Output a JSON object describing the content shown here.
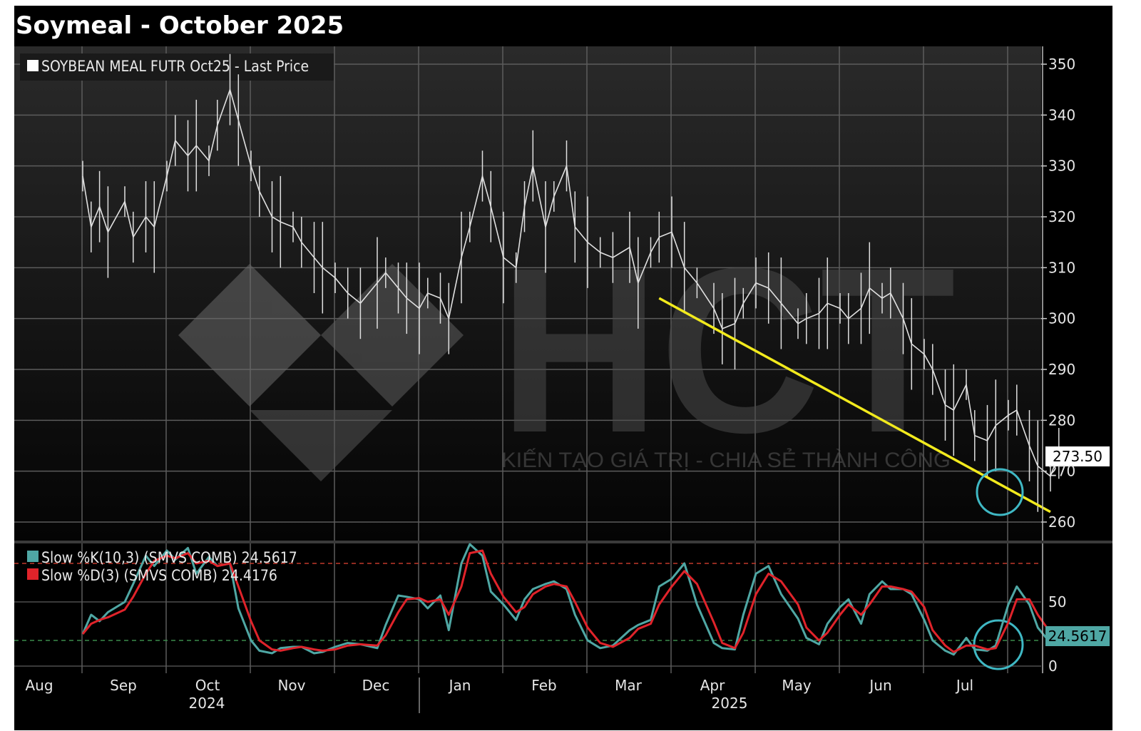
{
  "title": "Soymeal - October 2025",
  "watermark": {
    "logo_text": "HCT",
    "slogan": "KIẾN TẠO GIÁ TRỊ - CHIA SẺ THÀNH CÔNG"
  },
  "colors": {
    "background": "#000000",
    "price": "#e0e0e0",
    "trendline": "#f2ea1d",
    "k_line": "#4fa7a4",
    "d_line": "#e0232a",
    "circle": "#3fb8c4",
    "upper_band": "#c0392b",
    "lower_band": "#3a8a4a",
    "grid": "#5c5c5c"
  },
  "chart_data": [
    {
      "type": "line",
      "title": "Soymeal - October 2025",
      "legend": [
        "SOYBEAN MEAL FUTR Oct25 - Last Price"
      ],
      "legend_placement": "top-left",
      "grid": true,
      "months": [
        "Aug",
        "Sep",
        "Oct",
        "Nov",
        "Dec",
        "Jan",
        "Feb",
        "Mar",
        "Apr",
        "May",
        "Jun",
        "Jul"
      ],
      "years": [
        "2024",
        "2025"
      ],
      "y_ticks": [
        260,
        270,
        280,
        290,
        300,
        310,
        320,
        330,
        340,
        350
      ],
      "ylim": [
        258,
        352
      ],
      "last_price_label": "273.50",
      "series": [
        {
          "name": "SOYBEAN MEAL FUTR Oct25 - Last Price",
          "x": [
            0,
            0.1,
            0.2,
            0.3,
            0.5,
            0.6,
            0.75,
            0.85,
            1,
            1.1,
            1.25,
            1.35,
            1.5,
            1.6,
            1.75,
            1.85,
            2,
            2.1,
            2.25,
            2.35,
            2.5,
            2.6,
            2.75,
            2.85,
            3,
            3.15,
            3.3,
            3.5,
            3.6,
            3.75,
            3.85,
            4,
            4.1,
            4.25,
            4.35,
            4.5,
            4.6,
            4.75,
            4.85,
            5,
            5.15,
            5.25,
            5.35,
            5.5,
            5.6,
            5.75,
            5.85,
            6,
            6.15,
            6.3,
            6.5,
            6.6,
            6.75,
            6.85,
            7,
            7.15,
            7.3,
            7.5,
            7.6,
            7.75,
            7.85,
            8,
            8.15,
            8.3,
            8.5,
            8.6,
            8.75,
            8.85,
            9,
            9.1,
            9.25,
            9.35,
            9.5,
            9.6,
            9.75,
            9.85,
            10,
            10.1,
            10.25,
            10.35,
            10.5,
            10.6,
            10.75,
            10.85,
            11,
            11.1,
            11.25,
            11.35,
            11.5,
            11.6
          ],
          "values": [
            328,
            318,
            322,
            317,
            323,
            316,
            320,
            318,
            328,
            335,
            332,
            334,
            331,
            338,
            345,
            339,
            330,
            325,
            320,
            319,
            318,
            315,
            312,
            310,
            308,
            305,
            303,
            307,
            309,
            306,
            304,
            302,
            305,
            304,
            300,
            312,
            318,
            328,
            322,
            312,
            310,
            322,
            330,
            318,
            324,
            330,
            318,
            315,
            313,
            312,
            314,
            307,
            313,
            316,
            317,
            310,
            307,
            302,
            298,
            299,
            303,
            307,
            306,
            303,
            299,
            300,
            301,
            303,
            302,
            300,
            302,
            306,
            304,
            305,
            300,
            295,
            293,
            290,
            283,
            282,
            287,
            277,
            276,
            279,
            281,
            282,
            275,
            271,
            269,
            273.5
          ]
        },
        {
          "name": "Trend",
          "x": [
            6.85,
            11.5
          ],
          "values": [
            304,
            262
          ]
        }
      ]
    },
    {
      "type": "line",
      "grid": true,
      "y_ticks": [
        0,
        50
      ],
      "ylim": [
        -6,
        100
      ],
      "upper_band": 80,
      "lower_band": 20,
      "last_value_label": "24.5617",
      "series": [
        {
          "name": "Slow %K(10,3) (SMVS COMB)",
          "label": "Slow %K(10,3) (SMVS COMB) 24.5617",
          "x": [
            0,
            0.1,
            0.2,
            0.3,
            0.5,
            0.6,
            0.75,
            0.85,
            1,
            1.1,
            1.25,
            1.35,
            1.5,
            1.6,
            1.75,
            1.85,
            2,
            2.1,
            2.25,
            2.35,
            2.5,
            2.6,
            2.75,
            2.85,
            3,
            3.15,
            3.3,
            3.5,
            3.6,
            3.75,
            3.85,
            4,
            4.1,
            4.25,
            4.35,
            4.5,
            4.6,
            4.75,
            4.85,
            5,
            5.15,
            5.25,
            5.35,
            5.5,
            5.6,
            5.75,
            5.85,
            6,
            6.15,
            6.3,
            6.5,
            6.6,
            6.75,
            6.85,
            7,
            7.15,
            7.3,
            7.5,
            7.6,
            7.75,
            7.85,
            8,
            8.15,
            8.3,
            8.5,
            8.6,
            8.75,
            8.85,
            9,
            9.1,
            9.25,
            9.35,
            9.5,
            9.6,
            9.75,
            9.85,
            10,
            10.1,
            10.25,
            10.35,
            10.5,
            10.6,
            10.75,
            10.85,
            11,
            11.1,
            11.25,
            11.35,
            11.5,
            11.6
          ],
          "values": [
            25,
            40,
            35,
            42,
            50,
            64,
            86,
            78,
            90,
            83,
            92,
            72,
            85,
            78,
            80,
            45,
            20,
            12,
            10,
            14,
            15,
            15,
            10,
            11,
            15,
            18,
            17,
            14,
            32,
            55,
            54,
            52,
            45,
            55,
            28,
            80,
            95,
            86,
            58,
            48,
            36,
            52,
            60,
            64,
            66,
            60,
            40,
            20,
            14,
            16,
            28,
            32,
            36,
            62,
            68,
            80,
            48,
            18,
            14,
            13,
            40,
            72,
            78,
            56,
            37,
            22,
            17,
            33,
            46,
            52,
            33,
            56,
            66,
            60,
            60,
            56,
            36,
            20,
            12,
            9,
            22,
            13,
            12,
            16,
            48,
            62,
            48,
            30,
            18,
            24.56
          ]
        },
        {
          "name": "Slow %D(3) (SMVS COMB)",
          "label": "Slow %D(3) (SMVS COMB) 24.4176",
          "x": [
            0,
            0.1,
            0.2,
            0.3,
            0.5,
            0.6,
            0.75,
            0.85,
            1,
            1.1,
            1.25,
            1.35,
            1.5,
            1.6,
            1.75,
            1.85,
            2,
            2.1,
            2.25,
            2.35,
            2.5,
            2.6,
            2.75,
            2.85,
            3,
            3.15,
            3.3,
            3.5,
            3.6,
            3.75,
            3.85,
            4,
            4.1,
            4.25,
            4.35,
            4.5,
            4.6,
            4.75,
            4.85,
            5,
            5.15,
            5.25,
            5.35,
            5.5,
            5.6,
            5.75,
            5.85,
            6,
            6.15,
            6.3,
            6.5,
            6.6,
            6.75,
            6.85,
            7,
            7.15,
            7.3,
            7.5,
            7.6,
            7.75,
            7.85,
            8,
            8.15,
            8.3,
            8.5,
            8.6,
            8.75,
            8.85,
            9,
            9.1,
            9.25,
            9.35,
            9.5,
            9.6,
            9.75,
            9.85,
            10,
            10.1,
            10.25,
            10.35,
            10.5,
            10.6,
            10.75,
            10.85,
            11,
            11.1,
            11.25,
            11.35,
            11.5,
            11.6
          ],
          "values": [
            25,
            33,
            36,
            38,
            44,
            54,
            72,
            82,
            86,
            84,
            88,
            80,
            82,
            78,
            80,
            62,
            35,
            20,
            13,
            12,
            14,
            15,
            13,
            12,
            13,
            16,
            17,
            16,
            24,
            42,
            52,
            53,
            50,
            52,
            40,
            62,
            88,
            90,
            72,
            54,
            42,
            46,
            56,
            62,
            64,
            62,
            50,
            30,
            18,
            15,
            22,
            29,
            33,
            48,
            62,
            74,
            64,
            34,
            18,
            14,
            26,
            56,
            72,
            66,
            48,
            30,
            20,
            26,
            40,
            48,
            40,
            48,
            62,
            62,
            60,
            58,
            46,
            28,
            16,
            11,
            16,
            16,
            13,
            14,
            34,
            52,
            52,
            40,
            26,
            24.42
          ]
        }
      ]
    }
  ]
}
